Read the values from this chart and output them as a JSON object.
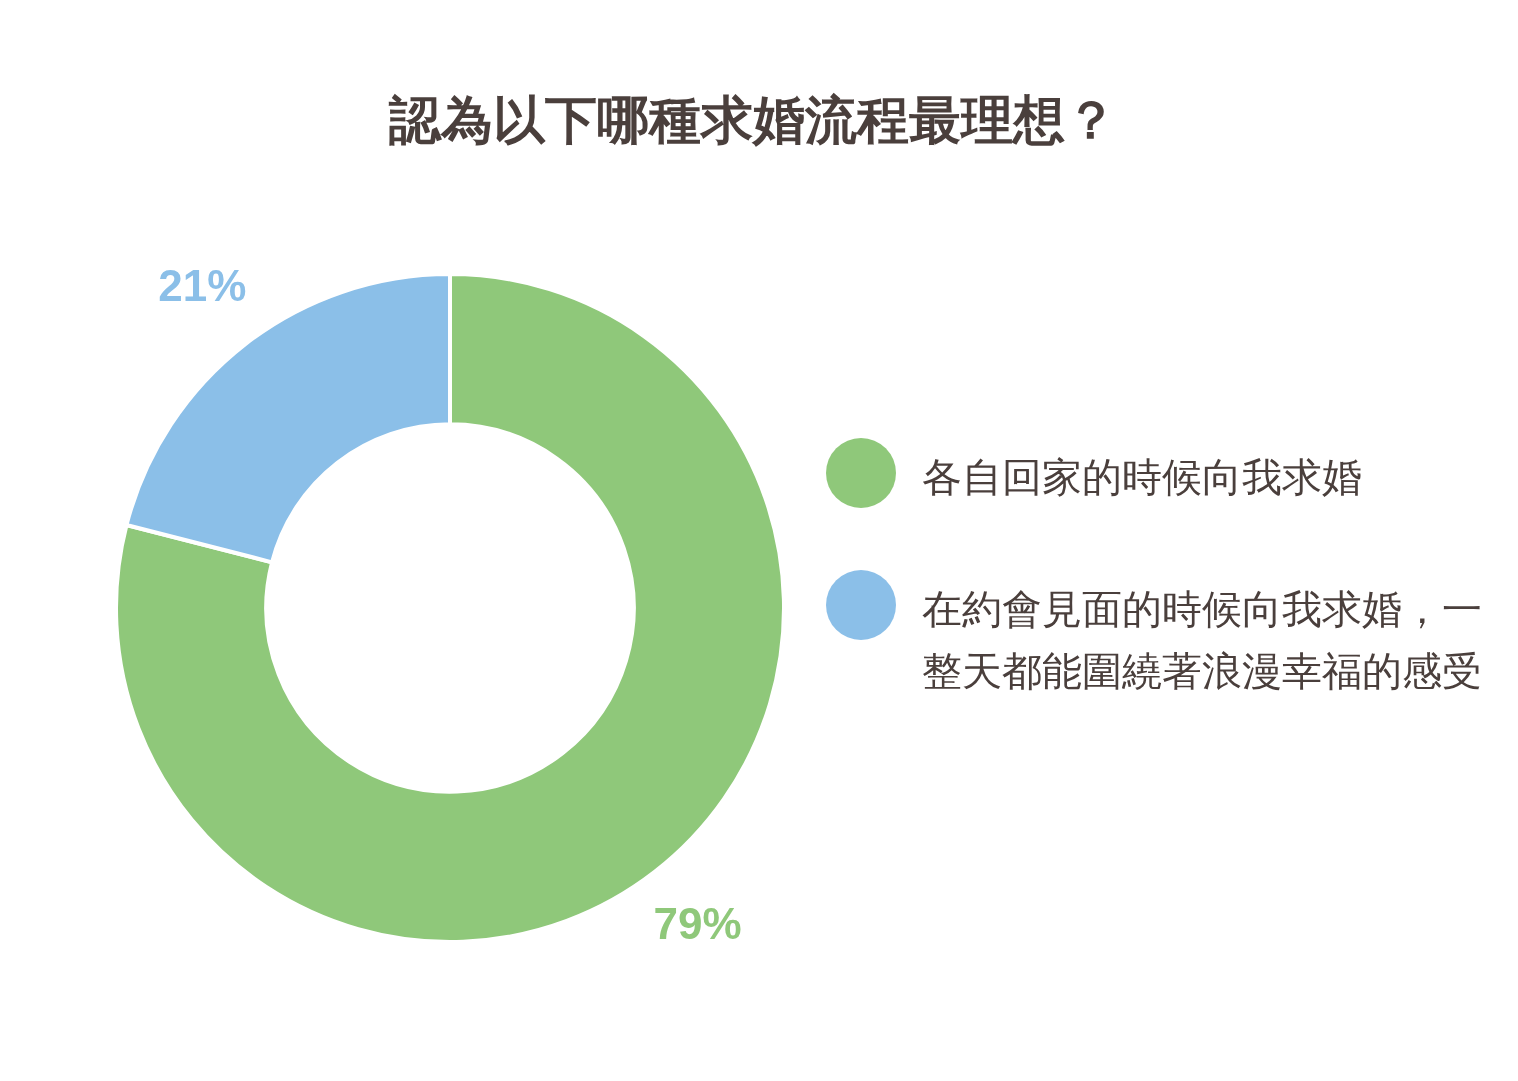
{
  "chart_data": {
    "type": "donut",
    "title": "認為以下哪種求婚流程最理想？",
    "categories": [
      "各自回家的時候向我求婚",
      "在約會見面的時候向我求婚，一整天都能圍繞著浪漫幸福的感受"
    ],
    "values": [
      79,
      21
    ],
    "colors": [
      "#8fc87a",
      "#8bbfe8"
    ],
    "value_labels": [
      "79%",
      "21%"
    ],
    "legend": "right"
  }
}
